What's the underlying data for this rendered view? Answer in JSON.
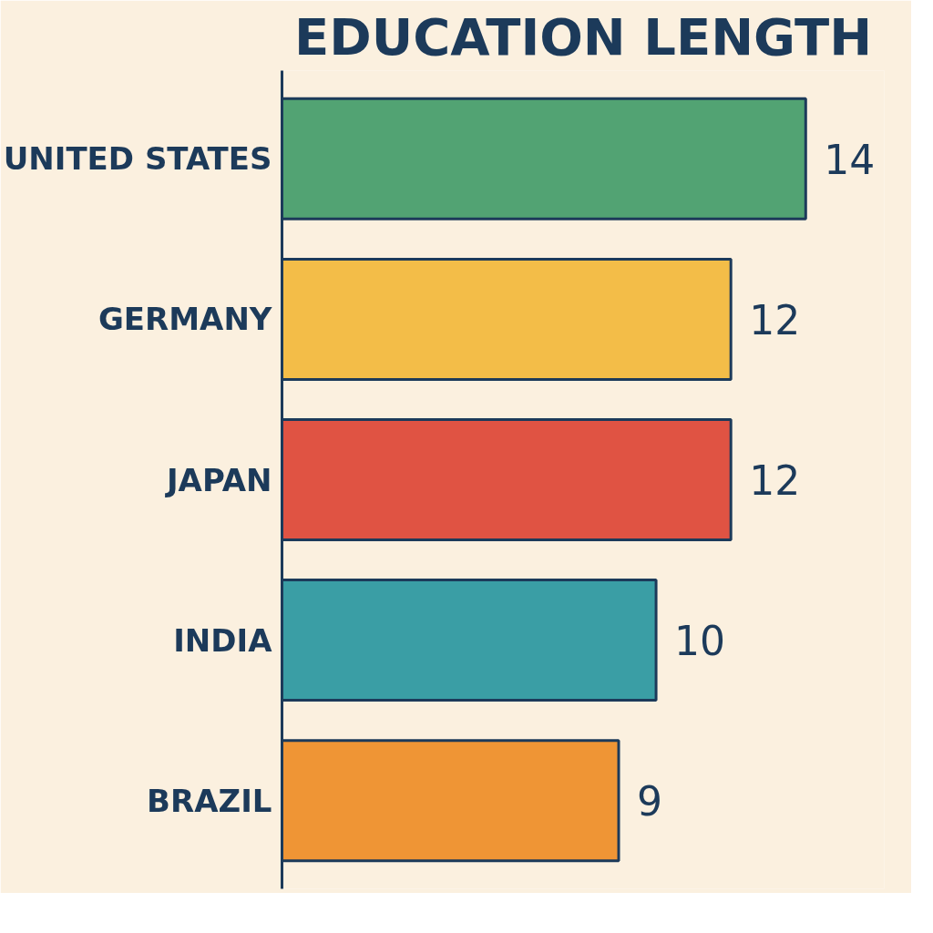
{
  "chart_data": {
    "type": "bar",
    "orientation": "horizontal",
    "title": "EDUCATION LENGTH",
    "categories": [
      "UNITED STATES",
      "GERMANY",
      "JAPAN",
      "INDIA",
      "BRAZIL"
    ],
    "values": [
      14,
      12,
      12,
      10,
      9
    ],
    "colors": [
      "#52a373",
      "#f3bd48",
      "#e05343",
      "#3a9ea5",
      "#ef9535"
    ],
    "data_labels": true,
    "tick_labels": "y"
  }
}
